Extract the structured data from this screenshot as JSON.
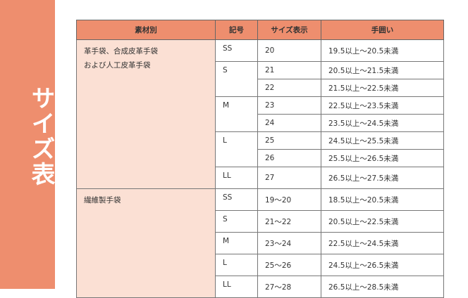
{
  "sidebar": {
    "title": "サイズ表",
    "color": "#ee8e6e"
  },
  "table": {
    "headers": [
      "素材別",
      "記号",
      "サイズ表示",
      "手囲い"
    ],
    "groups": [
      {
        "material": [
          "革手袋、合成皮革手袋",
          "および人工皮革手袋"
        ],
        "symbols": [
          {
            "symbol": "SS",
            "rows": [
              {
                "size": "20",
                "range": "19.5以上～20.5未満"
              }
            ]
          },
          {
            "symbol": "S",
            "rows": [
              {
                "size": "21",
                "range": "20.5以上～21.5未満"
              },
              {
                "size": "22",
                "range": "21.5以上～22.5未満"
              }
            ]
          },
          {
            "symbol": "M",
            "rows": [
              {
                "size": "23",
                "range": "22.5以上～23.5未満"
              },
              {
                "size": "24",
                "range": "23.5以上～24.5未満"
              }
            ]
          },
          {
            "symbol": "L",
            "rows": [
              {
                "size": "25",
                "range": "24.5以上～25.5未満"
              },
              {
                "size": "26",
                "range": "25.5以上～26.5未満"
              }
            ]
          },
          {
            "symbol": "LL",
            "rows": [
              {
                "size": "27",
                "range": "26.5以上～27.5未満"
              }
            ]
          }
        ]
      },
      {
        "material": [
          "繊維製手袋"
        ],
        "symbols": [
          {
            "symbol": "SS",
            "rows": [
              {
                "size": "19～20",
                "range": "18.5以上～20.5未満"
              }
            ]
          },
          {
            "symbol": "S",
            "rows": [
              {
                "size": "21～22",
                "range": "20.5以上～22.5未満"
              }
            ]
          },
          {
            "symbol": "M",
            "rows": [
              {
                "size": "23～24",
                "range": "22.5以上～24.5未満"
              }
            ]
          },
          {
            "symbol": "L",
            "rows": [
              {
                "size": "25～26",
                "range": "24.5以上～26.5未満"
              }
            ]
          },
          {
            "symbol": "LL",
            "rows": [
              {
                "size": "27～28",
                "range": "26.5以上～28.5未満"
              }
            ]
          }
        ]
      }
    ]
  }
}
